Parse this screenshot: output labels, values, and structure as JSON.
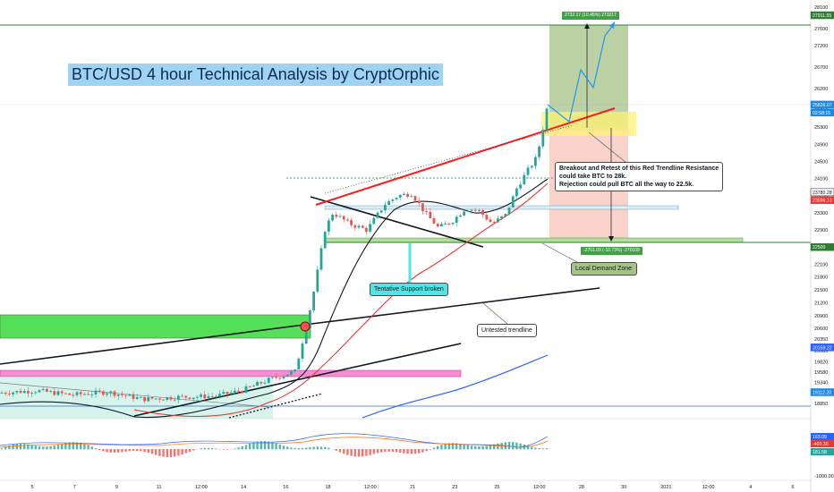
{
  "title": "BTC/USD 4 hour Technical Analysis by CryptOrphic",
  "annotations": {
    "breakout_line1": "Breakout and Retest of this Red Trendline Resistance",
    "breakout_line2": "could take BTC to 28k.",
    "breakout_line3": "Rejection could pull BTC all the way to 22.5k.",
    "tentative": "Tentative Support broken",
    "untested": "Untested trendline",
    "demand": "Local Demand Zone"
  },
  "measure_tags": {
    "top": "2732.17 (10.45%) 273217",
    "bottom": "-2701.09 (-10.73%) -270109"
  },
  "colors": {
    "up": "#26a69a",
    "down": "#ef5350",
    "ma_short": "#131722",
    "ma_mid": "#e53935",
    "ma_long": "#2962ff",
    "trend_red": "#ff1a1a",
    "target_line": "#2196f3",
    "demand_line": "#2e7d32",
    "profit_zone": "#9fbf7d",
    "loss_zone": "#f7c7bc",
    "retest_box": "#fff176"
  },
  "chart_data": {
    "type": "candlestick",
    "symbol": "BTC/USD",
    "timeframe": "4 hour",
    "ylim": [
      18600,
      28100
    ],
    "y_ticks": [
      28100,
      27600,
      27200,
      26700,
      26200,
      25700,
      25300,
      24900,
      24500,
      24100,
      23700,
      23300,
      22900,
      22500,
      22100,
      21800,
      21500,
      21200,
      20900,
      20600,
      20350,
      20080,
      19820,
      19580,
      19340,
      19090,
      18850
    ],
    "x_ticks": [
      "5",
      "7",
      "9",
      "11",
      "12:00",
      "14",
      "16",
      "18",
      "12:00",
      "21",
      "23",
      "25",
      "12:00",
      "28",
      "30",
      "2021",
      "12:00",
      "4",
      "6"
    ],
    "price_labels": [
      {
        "text": "27911.55",
        "value": 27911.55,
        "color": "#2e7d32"
      },
      {
        "text": "25826.07",
        "value": 25826.07,
        "color": "#1e88e5"
      },
      {
        "text": "02:58:15",
        "value": 25640,
        "color": "#1e88e5"
      },
      {
        "text": "23780.28",
        "value": 23780.28,
        "color": "#131722"
      },
      {
        "text": "23596.13",
        "value": 23596.13,
        "color": "#e53935"
      },
      {
        "text": "22500",
        "value": 22500,
        "color": "#2e7d32"
      },
      {
        "text": "20159.22",
        "value": 20159.22,
        "color": "#2962ff"
      },
      {
        "text": "19112.20",
        "value": 19112.2,
        "color": "#1e88e5"
      }
    ],
    "candles_daily_shape": [
      [
        19000,
        19250,
        18900,
        19150
      ],
      [
        19150,
        19300,
        19000,
        19060
      ],
      [
        19060,
        19200,
        18950,
        19120
      ],
      [
        19120,
        19220,
        18980,
        19010
      ],
      [
        19010,
        19180,
        18900,
        19140
      ],
      [
        19140,
        19260,
        19020,
        19080
      ]
    ],
    "projection_path": [
      [
        25826,
        0
      ],
      [
        25380,
        1
      ],
      [
        26500,
        2
      ],
      [
        25950,
        3
      ],
      [
        27300,
        4
      ],
      [
        27900,
        5
      ]
    ],
    "macd_labels": [
      "163.09",
      "-403.30",
      "181.58"
    ],
    "macd_axis_label": "-1000.00"
  }
}
